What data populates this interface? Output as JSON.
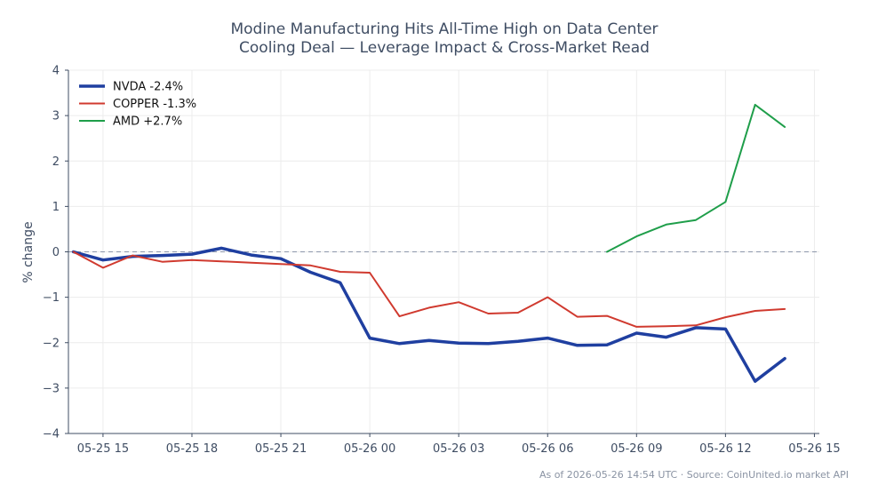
{
  "chart_data": {
    "type": "line",
    "title_lines": [
      "Modine Manufacturing Hits All-Time High on Data Center",
      "Cooling Deal — Leverage Impact & Cross-Market Read"
    ],
    "ylabel": "% change",
    "xlabel": "",
    "ylim": [
      -4,
      4
    ],
    "yticks": [
      -4,
      -3,
      -2,
      -1,
      0,
      1,
      2,
      3,
      4
    ],
    "ytick_labels": [
      "−4",
      "−3",
      "−2",
      "−1",
      "0",
      "1",
      "2",
      "3",
      "4"
    ],
    "xlim": [
      "05-25 13:50",
      "05-26 15:10"
    ],
    "xticks": [
      "05-25 15:00",
      "05-25 18:00",
      "05-25 21:00",
      "05-26 00:00",
      "05-26 03:00",
      "05-26 06:00",
      "05-26 09:00",
      "05-26 12:00",
      "05-26 15:00"
    ],
    "xtick_labels": [
      "05-25 15",
      "05-25 18",
      "05-25 21",
      "05-26 00",
      "05-26 03",
      "05-26 06",
      "05-26 09",
      "05-26 12",
      "05-26 15"
    ],
    "grid": true,
    "zero_line": true,
    "legend_position": "top-left",
    "series": [
      {
        "name": "NVDA -2.4%",
        "color": "#1f3fa0",
        "width": 3.5,
        "points": [
          [
            "05-25 14:00",
            0.0
          ],
          [
            "05-25 15:00",
            -0.18
          ],
          [
            "05-25 16:00",
            -0.1
          ],
          [
            "05-25 17:00",
            -0.08
          ],
          [
            "05-25 18:00",
            -0.05
          ],
          [
            "05-25 19:00",
            0.08
          ],
          [
            "05-25 20:00",
            -0.07
          ],
          [
            "05-25 21:00",
            -0.15
          ],
          [
            "05-25 22:00",
            -0.45
          ],
          [
            "05-25 23:00",
            -0.68
          ],
          [
            "05-26 00:00",
            -1.9
          ],
          [
            "05-26 01:00",
            -2.02
          ],
          [
            "05-26 02:00",
            -1.95
          ],
          [
            "05-26 03:00",
            -2.01
          ],
          [
            "05-26 04:00",
            -2.02
          ],
          [
            "05-26 05:00",
            -1.97
          ],
          [
            "05-26 06:00",
            -1.9
          ],
          [
            "05-26 07:00",
            -2.06
          ],
          [
            "05-26 08:00",
            -2.05
          ],
          [
            "05-26 09:00",
            -1.79
          ],
          [
            "05-26 10:00",
            -1.88
          ],
          [
            "05-26 11:00",
            -1.67
          ],
          [
            "05-26 12:00",
            -1.7
          ],
          [
            "05-26 13:00",
            -2.85
          ],
          [
            "05-26 14:00",
            -2.35
          ]
        ]
      },
      {
        "name": "COPPER -1.3%",
        "color": "#d03a2f",
        "width": 2,
        "points": [
          [
            "05-25 14:00",
            0.0
          ],
          [
            "05-25 15:00",
            -0.35
          ],
          [
            "05-25 16:00",
            -0.08
          ],
          [
            "05-25 17:00",
            -0.22
          ],
          [
            "05-25 18:00",
            -0.18
          ],
          [
            "05-25 19:00",
            -0.21
          ],
          [
            "05-25 20:00",
            -0.24
          ],
          [
            "05-25 21:00",
            -0.27
          ],
          [
            "05-25 22:00",
            -0.3
          ],
          [
            "05-25 23:00",
            -0.44
          ],
          [
            "05-26 00:00",
            -0.46
          ],
          [
            "05-26 01:00",
            -1.42
          ],
          [
            "05-26 02:00",
            -1.23
          ],
          [
            "05-26 03:00",
            -1.11
          ],
          [
            "05-26 04:00",
            -1.36
          ],
          [
            "05-26 05:00",
            -1.34
          ],
          [
            "05-26 06:00",
            -1.0
          ],
          [
            "05-26 07:00",
            -1.43
          ],
          [
            "05-26 08:00",
            -1.41
          ],
          [
            "05-26 09:00",
            -1.65
          ],
          [
            "05-26 10:00",
            -1.64
          ],
          [
            "05-26 11:00",
            -1.62
          ],
          [
            "05-26 12:00",
            -1.44
          ],
          [
            "05-26 13:00",
            -1.3
          ],
          [
            "05-26 14:00",
            -1.26
          ]
        ]
      },
      {
        "name": "AMD +2.7%",
        "color": "#1f9e4a",
        "width": 2,
        "points": [
          [
            "05-26 08:00",
            0.0
          ],
          [
            "05-26 09:00",
            0.34
          ],
          [
            "05-26 10:00",
            0.6
          ],
          [
            "05-26 11:00",
            0.7
          ],
          [
            "05-26 12:00",
            1.1
          ],
          [
            "05-26 13:00",
            3.24
          ],
          [
            "05-26 14:00",
            2.75
          ]
        ]
      }
    ]
  },
  "footer": "As of 2026-05-26 14:54 UTC · Source: CoinUnited.io market API"
}
